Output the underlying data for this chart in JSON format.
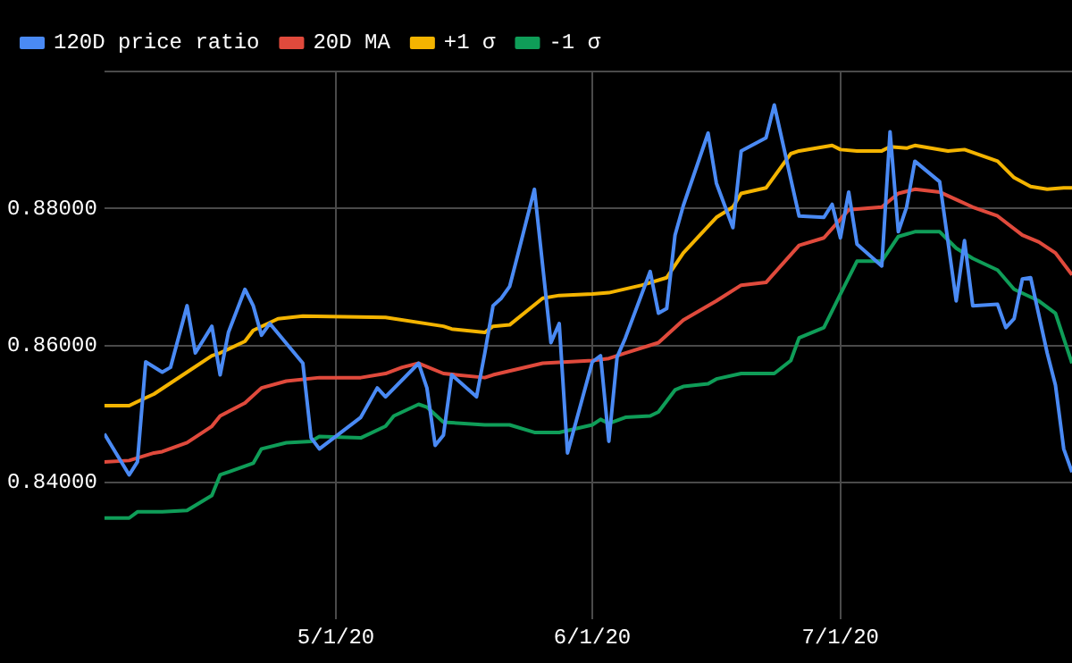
{
  "chart_data": {
    "type": "line",
    "legend": "top left",
    "grid": true,
    "marker": "none",
    "line_style": "solid",
    "xlim": [
      "2020-04-03",
      "2020-07-29"
    ],
    "xticks": [
      {
        "value": "2020-05-01",
        "label": "5/1/20"
      },
      {
        "value": "2020-06-01",
        "label": "6/1/20"
      },
      {
        "value": "2020-07-01",
        "label": "7/1/20"
      }
    ],
    "ylim": [
      0.82,
      0.9
    ],
    "yticks": [
      {
        "value": 0.84,
        "label": "0.84000"
      },
      {
        "value": 0.86,
        "label": "0.86000"
      },
      {
        "value": 0.88,
        "label": "0.88000"
      },
      {
        "value": 0.9,
        "label": null
      }
    ],
    "series": [
      {
        "name": "120D price ratio",
        "color": "#4a8af4",
        "x": [
          "2020-04-03",
          "2020-04-06",
          "2020-04-07",
          "2020-04-08",
          "2020-04-10",
          "2020-04-11",
          "2020-04-13",
          "2020-04-14",
          "2020-04-16",
          "2020-04-17",
          "2020-04-18",
          "2020-04-20",
          "2020-04-21",
          "2020-04-22",
          "2020-04-23",
          "2020-04-27",
          "2020-04-28",
          "2020-04-29",
          "2020-05-04",
          "2020-05-06",
          "2020-05-07",
          "2020-05-11",
          "2020-05-12",
          "2020-05-13",
          "2020-05-14",
          "2020-05-15",
          "2020-05-18",
          "2020-05-19",
          "2020-05-20",
          "2020-05-21",
          "2020-05-22",
          "2020-05-23",
          "2020-05-25",
          "2020-05-27",
          "2020-05-28",
          "2020-05-29",
          "2020-06-01",
          "2020-06-02",
          "2020-06-03",
          "2020-06-04",
          "2020-06-05",
          "2020-06-08",
          "2020-06-09",
          "2020-06-10",
          "2020-06-11",
          "2020-06-12",
          "2020-06-15",
          "2020-06-16",
          "2020-06-18",
          "2020-06-19",
          "2020-06-22",
          "2020-06-23",
          "2020-06-26",
          "2020-06-29",
          "2020-06-30",
          "2020-07-01",
          "2020-07-02",
          "2020-07-03",
          "2020-07-06",
          "2020-07-07",
          "2020-07-08",
          "2020-07-09",
          "2020-07-10",
          "2020-07-13",
          "2020-07-15",
          "2020-07-16",
          "2020-07-17",
          "2020-07-20",
          "2020-07-21",
          "2020-07-22",
          "2020-07-23",
          "2020-07-24",
          "2020-07-26",
          "2020-07-27",
          "2020-07-28",
          "2020-07-29"
        ],
        "values": [
          0.8471,
          0.8411,
          0.843,
          0.8576,
          0.8561,
          0.8568,
          0.8658,
          0.8589,
          0.8628,
          0.8557,
          0.8619,
          0.8682,
          0.8658,
          0.8615,
          0.8632,
          0.8574,
          0.8465,
          0.8449,
          0.8495,
          0.8538,
          0.8525,
          0.8574,
          0.8538,
          0.8454,
          0.8469,
          0.8557,
          0.8525,
          0.8589,
          0.8658,
          0.8669,
          0.8686,
          0.8733,
          0.8828,
          0.8604,
          0.8632,
          0.8443,
          0.8576,
          0.8585,
          0.846,
          0.8583,
          0.8611,
          0.8708,
          0.8647,
          0.8654,
          0.8761,
          0.8804,
          0.891,
          0.8837,
          0.8772,
          0.8884,
          0.8903,
          0.8951,
          0.8789,
          0.8787,
          0.8806,
          0.8757,
          0.8824,
          0.8748,
          0.8716,
          0.8912,
          0.8766,
          0.8802,
          0.8869,
          0.8839,
          0.8665,
          0.8753,
          0.8658,
          0.866,
          0.8626,
          0.8639,
          0.8697,
          0.8699,
          0.8589,
          0.8542,
          0.8449,
          0.8415
        ]
      },
      {
        "name": "20D MA",
        "color": "#e04a3c",
        "x": [
          "2020-04-03",
          "2020-04-06",
          "2020-04-09",
          "2020-04-10",
          "2020-04-13",
          "2020-04-16",
          "2020-04-17",
          "2020-04-20",
          "2020-04-22",
          "2020-04-25",
          "2020-04-29",
          "2020-05-04",
          "2020-05-07",
          "2020-05-09",
          "2020-05-11",
          "2020-05-14",
          "2020-05-19",
          "2020-05-20",
          "2020-05-26",
          "2020-06-01",
          "2020-06-03",
          "2020-06-05",
          "2020-06-09",
          "2020-06-12",
          "2020-06-16",
          "2020-06-19",
          "2020-06-22",
          "2020-06-26",
          "2020-06-29",
          "2020-07-02",
          "2020-07-06",
          "2020-07-08",
          "2020-07-10",
          "2020-07-13",
          "2020-07-15",
          "2020-07-17",
          "2020-07-20",
          "2020-07-23",
          "2020-07-25",
          "2020-07-27",
          "2020-07-29"
        ],
        "values": [
          0.843,
          0.8432,
          0.8443,
          0.8445,
          0.8458,
          0.8482,
          0.8497,
          0.8516,
          0.8538,
          0.8548,
          0.8553,
          0.8553,
          0.8559,
          0.8568,
          0.8574,
          0.8559,
          0.8553,
          0.8557,
          0.8574,
          0.8578,
          0.8581,
          0.8589,
          0.8604,
          0.8637,
          0.8665,
          0.8688,
          0.8692,
          0.8746,
          0.8757,
          0.8798,
          0.8802,
          0.8822,
          0.8828,
          0.8824,
          0.8813,
          0.8802,
          0.8789,
          0.8761,
          0.8751,
          0.8735,
          0.8703
        ]
      },
      {
        "name": "+1 σ",
        "color": "#f4b400",
        "x": [
          "2020-04-03",
          "2020-04-06",
          "2020-04-07",
          "2020-04-09",
          "2020-04-13",
          "2020-04-16",
          "2020-04-17",
          "2020-04-20",
          "2020-04-21",
          "2020-04-24",
          "2020-04-27",
          "2020-05-07",
          "2020-05-14",
          "2020-05-15",
          "2020-05-19",
          "2020-05-20",
          "2020-05-22",
          "2020-05-26",
          "2020-05-28",
          "2020-06-01",
          "2020-06-03",
          "2020-06-07",
          "2020-06-10",
          "2020-06-12",
          "2020-06-16",
          "2020-06-18",
          "2020-06-19",
          "2020-06-22",
          "2020-06-25",
          "2020-06-26",
          "2020-06-30",
          "2020-07-01",
          "2020-07-03",
          "2020-07-06",
          "2020-07-07",
          "2020-07-09",
          "2020-07-10",
          "2020-07-14",
          "2020-07-16",
          "2020-07-20",
          "2020-07-22",
          "2020-07-24",
          "2020-07-26",
          "2020-07-28",
          "2020-07-29"
        ],
        "values": [
          0.8512,
          0.8512,
          0.8518,
          0.8529,
          0.8561,
          0.8585,
          0.8589,
          0.8606,
          0.8622,
          0.8639,
          0.8643,
          0.8641,
          0.8628,
          0.8624,
          0.8619,
          0.8628,
          0.863,
          0.8669,
          0.8673,
          0.8675,
          0.8677,
          0.8688,
          0.8699,
          0.8735,
          0.8787,
          0.8802,
          0.8822,
          0.883,
          0.888,
          0.8884,
          0.8892,
          0.8886,
          0.8884,
          0.8884,
          0.889,
          0.8888,
          0.8892,
          0.8884,
          0.8886,
          0.8869,
          0.8845,
          0.8832,
          0.8828,
          0.883,
          0.883
        ]
      },
      {
        "name": "-1 σ",
        "color": "#0f9d58",
        "x": [
          "2020-04-03",
          "2020-04-06",
          "2020-04-07",
          "2020-04-10",
          "2020-04-13",
          "2020-04-16",
          "2020-04-17",
          "2020-04-21",
          "2020-04-22",
          "2020-04-25",
          "2020-04-28",
          "2020-04-29",
          "2020-05-04",
          "2020-05-07",
          "2020-05-08",
          "2020-05-11",
          "2020-05-12",
          "2020-05-14",
          "2020-05-19",
          "2020-05-22",
          "2020-05-25",
          "2020-05-28",
          "2020-06-01",
          "2020-06-02",
          "2020-06-03",
          "2020-06-05",
          "2020-06-08",
          "2020-06-09",
          "2020-06-11",
          "2020-06-12",
          "2020-06-15",
          "2020-06-16",
          "2020-06-19",
          "2020-06-23",
          "2020-06-25",
          "2020-06-26",
          "2020-06-29",
          "2020-07-01",
          "2020-07-03",
          "2020-07-06",
          "2020-07-08",
          "2020-07-10",
          "2020-07-13",
          "2020-07-15",
          "2020-07-17",
          "2020-07-20",
          "2020-07-22",
          "2020-07-25",
          "2020-07-27",
          "2020-07-29"
        ],
        "values": [
          0.8348,
          0.8348,
          0.8357,
          0.8357,
          0.8359,
          0.8381,
          0.8411,
          0.8428,
          0.8449,
          0.8458,
          0.846,
          0.8467,
          0.8465,
          0.8482,
          0.8497,
          0.8514,
          0.851,
          0.8488,
          0.8484,
          0.8484,
          0.8473,
          0.8473,
          0.8484,
          0.8492,
          0.8486,
          0.8495,
          0.8497,
          0.8503,
          0.8535,
          0.854,
          0.8544,
          0.8551,
          0.8559,
          0.8559,
          0.8578,
          0.8611,
          0.8626,
          0.8675,
          0.8723,
          0.8723,
          0.8759,
          0.8766,
          0.8766,
          0.8742,
          0.8727,
          0.871,
          0.8682,
          0.8665,
          0.8647,
          0.8574
        ]
      }
    ]
  }
}
